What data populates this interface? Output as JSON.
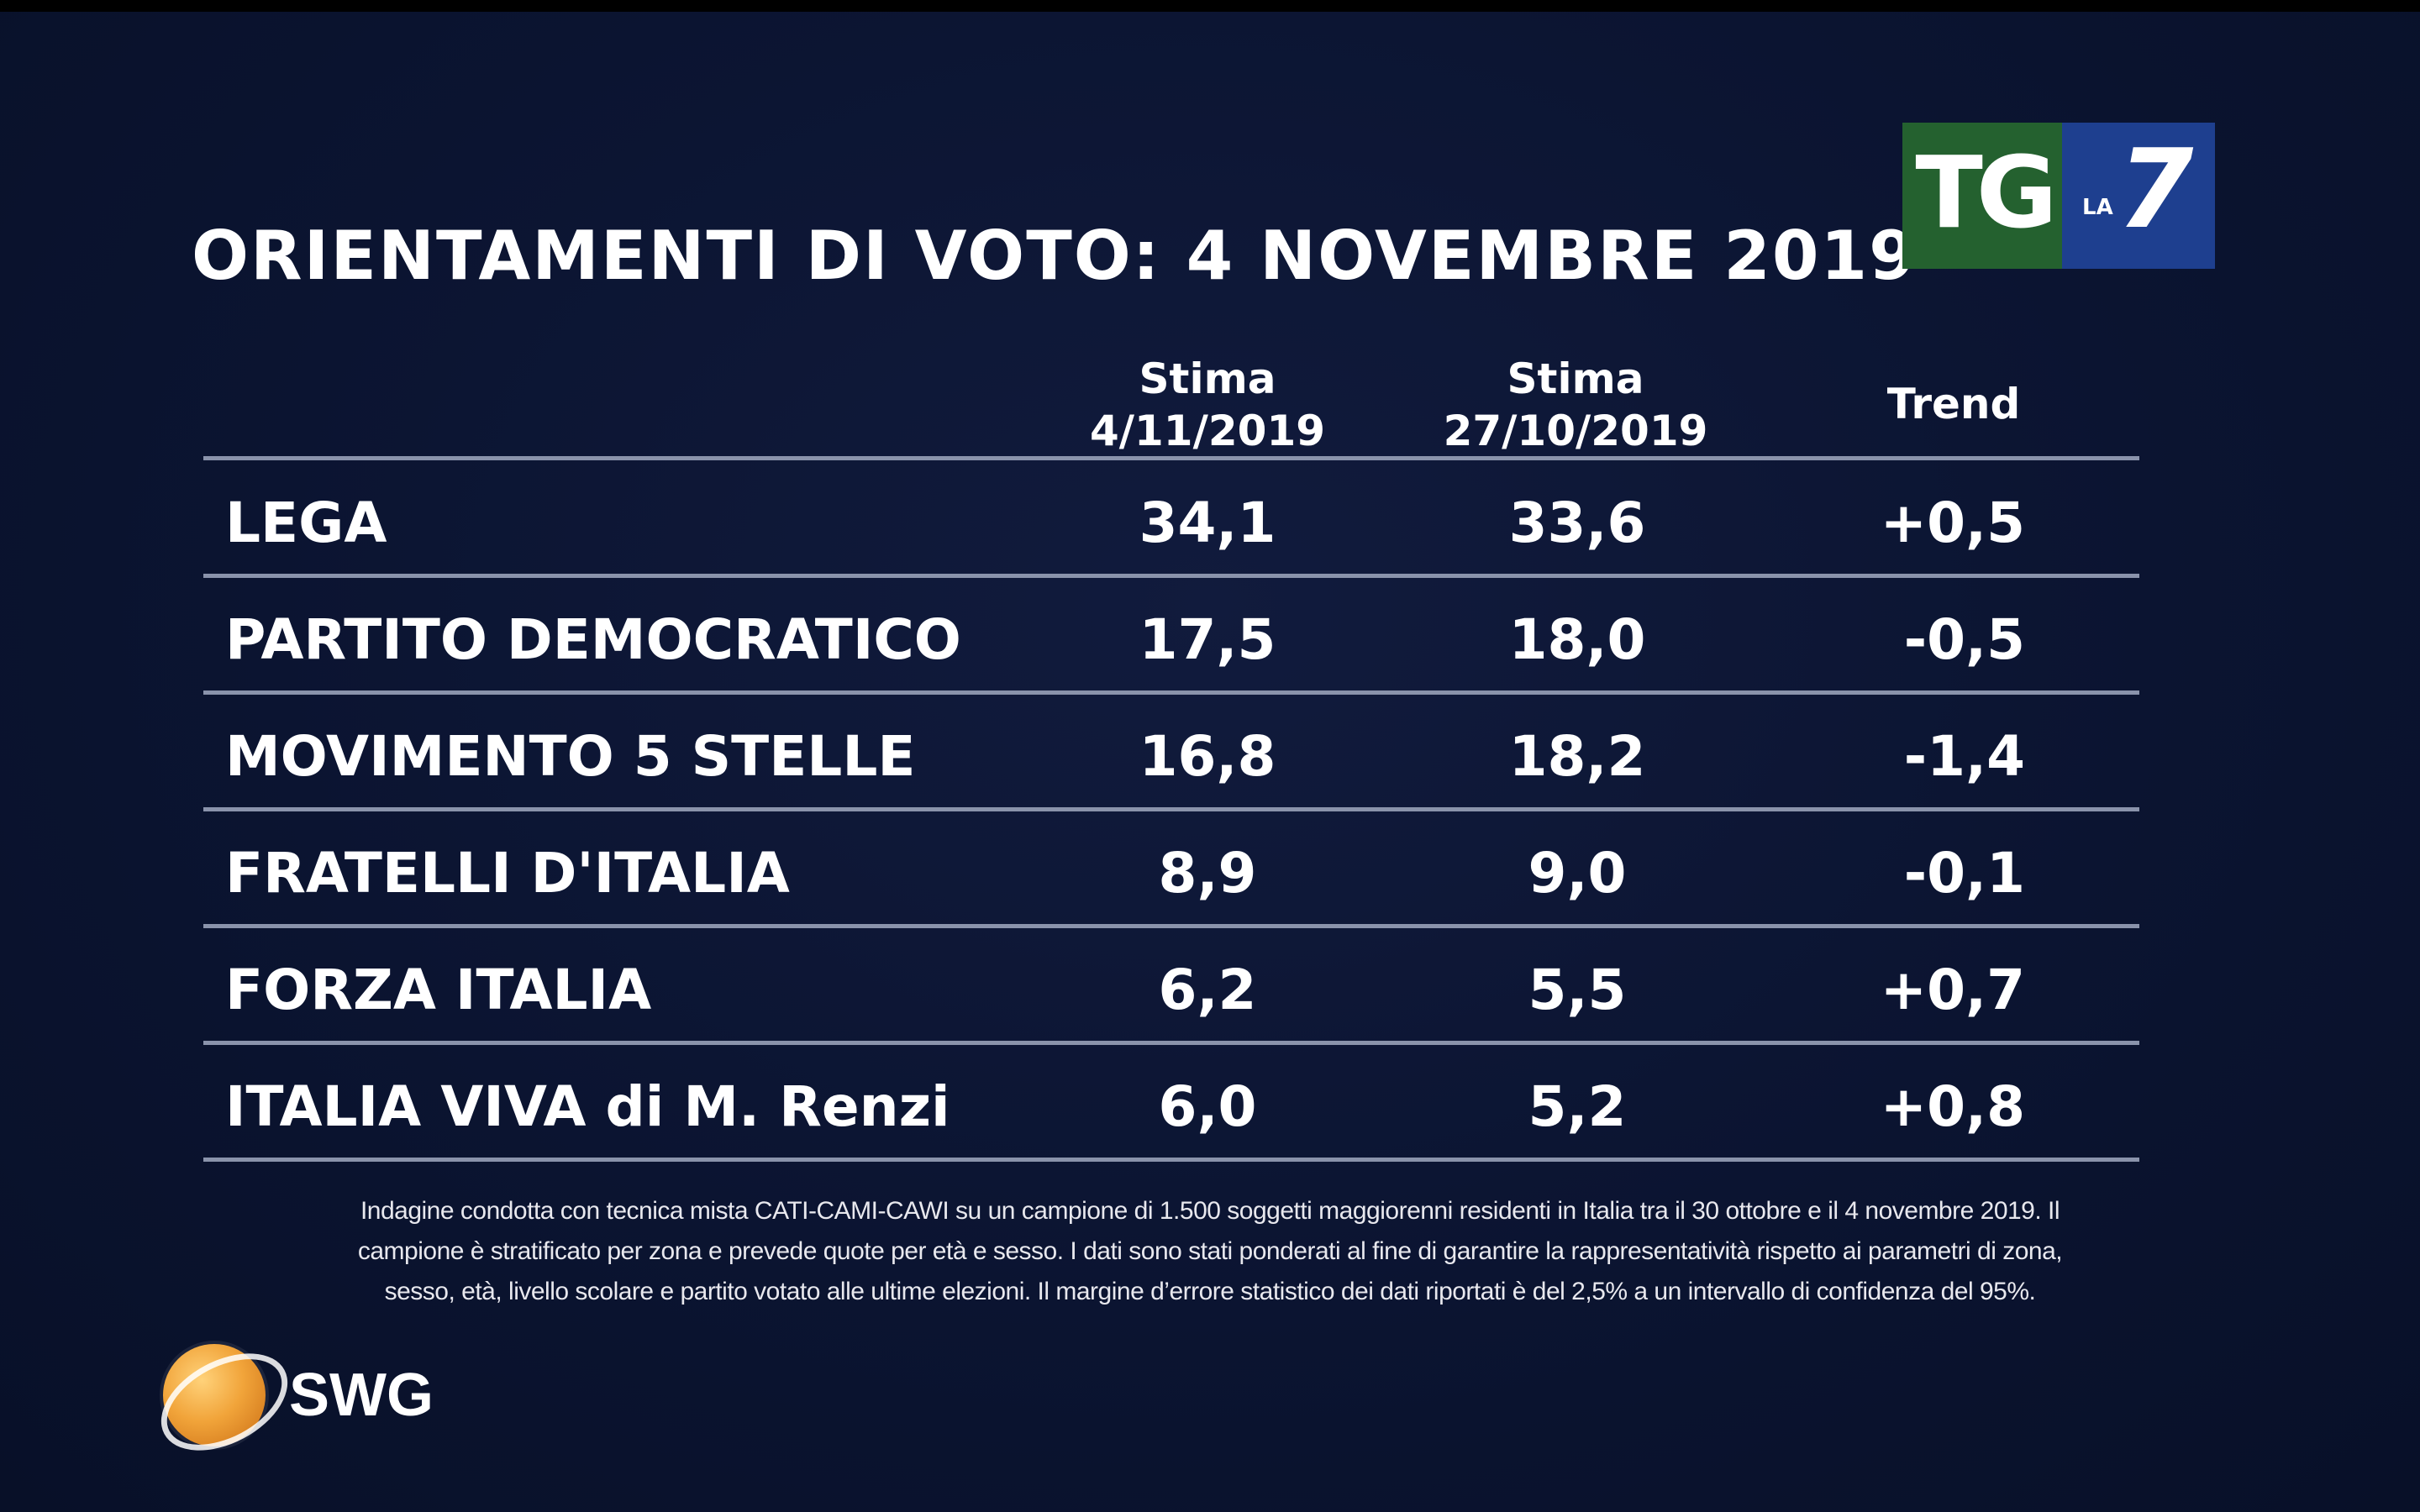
{
  "title": "ORIENTAMENTI DI VOTO: 4 NOVEMBRE 2019",
  "logos": {
    "broadcaster_tg": "TG",
    "broadcaster_la": "LA",
    "broadcaster_7": "7",
    "pollster": "SWG",
    "colors": {
      "tg_green": "#24612f",
      "la7_blue": "#1e3f8f",
      "swg_orange": "#f1a43a"
    }
  },
  "chart_data": {
    "type": "table",
    "columns": [
      {
        "line1": "Stima",
        "line2": "4/11/2019"
      },
      {
        "line1": "Stima",
        "line2": "27/10/2019"
      },
      {
        "line1": "Trend",
        "line2": ""
      }
    ],
    "rows": [
      {
        "party": "LEGA",
        "stima_4_11": "34,1",
        "stima_27_10": "33,6",
        "trend": "+0,5"
      },
      {
        "party": "PARTITO DEMOCRATICO",
        "stima_4_11": "17,5",
        "stima_27_10": "18,0",
        "trend": "-0,5"
      },
      {
        "party": "MOVIMENTO 5 STELLE",
        "stima_4_11": "16,8",
        "stima_27_10": "18,2",
        "trend": "-1,4"
      },
      {
        "party": "FRATELLI D'ITALIA",
        "stima_4_11": "8,9",
        "stima_27_10": "9,0",
        "trend": "-0,1"
      },
      {
        "party": "FORZA ITALIA",
        "stima_4_11": "6,2",
        "stima_27_10": "5,5",
        "trend": "+0,7"
      },
      {
        "party": "ITALIA VIVA di M. Renzi",
        "stima_4_11": "6,0",
        "stima_27_10": "5,2",
        "trend": "+0,8"
      }
    ]
  },
  "footnote": [
    "Indagine condotta con tecnica mista CATI-CAMI-CAWI su un campione di 1.500 soggetti maggiorenni residenti in Italia tra il 30 ottobre e il 4 novembre 2019. Il",
    "campione è stratificato per zona e prevede quote per età e sesso. I dati sono stati ponderati al fine di garantire la rappresentatività rispetto ai parametri di zona,",
    "sesso, età, livello scolare e partito votato alle ultime elezioni. Il margine d’errore statistico dei dati riportati è del 2,5% a un intervallo di confidenza del 95%."
  ]
}
